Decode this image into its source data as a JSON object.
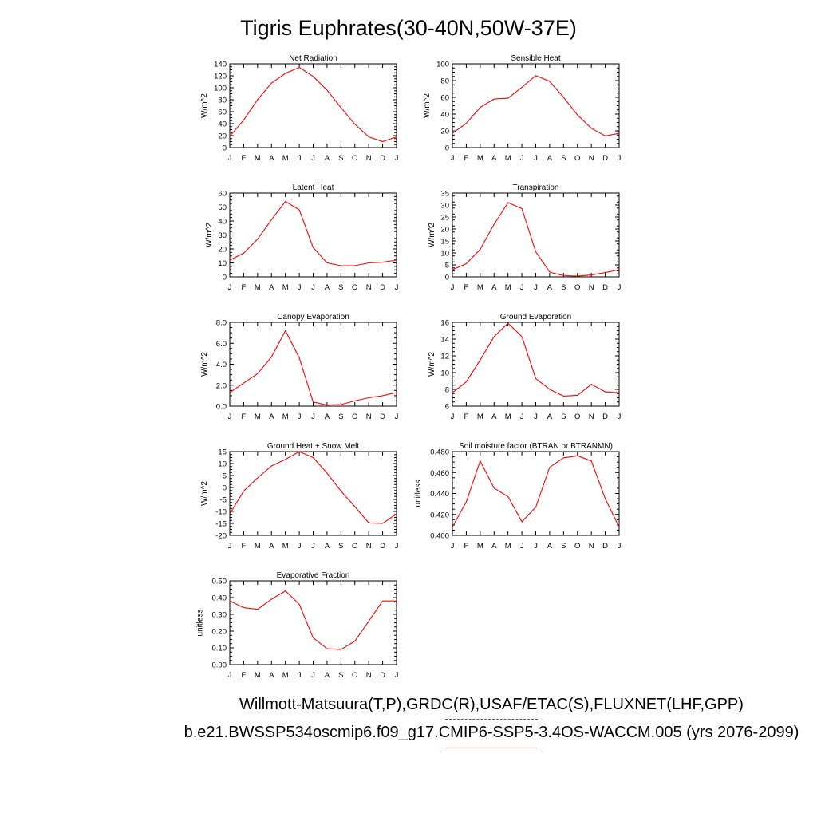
{
  "title": "Tigris Euphrates(30-40N,50W-37E)",
  "footer": {
    "line1": "Willmott-Matsuura(T,P),GRDC(R),USAF/ETAC(S),FLUXNET(LHF,GPP)",
    "line2": "b.e21.BWSSP534oscmip6.f09_g17.CMIP6-SSP5-3.4OS-WACCM.005 (yrs 2076-2099)"
  },
  "colors": {
    "series": "#ff0000",
    "axis": "#000000",
    "legend_obs": "#4b4bf0",
    "legend_model": "#ff6b6b"
  },
  "chart_data": [
    {
      "type": "line",
      "title": "Net Radiation",
      "ylabel": "W/m^2",
      "x": [
        "J",
        "F",
        "M",
        "A",
        "M",
        "J",
        "J",
        "A",
        "S",
        "O",
        "N",
        "D",
        "J"
      ],
      "ylim": [
        0,
        140
      ],
      "yticks": [
        0,
        20,
        40,
        60,
        80,
        100,
        120,
        140
      ],
      "ytick_labels": [
        "0",
        "20",
        "40",
        "60",
        "80",
        "100",
        "120",
        "140"
      ],
      "values": [
        19,
        46,
        80,
        108,
        124,
        134,
        119,
        96,
        67,
        39,
        18,
        10,
        18
      ]
    },
    {
      "type": "line",
      "title": "Sensible Heat",
      "ylabel": "W/m^2",
      "x": [
        "J",
        "F",
        "M",
        "A",
        "M",
        "J",
        "J",
        "A",
        "S",
        "O",
        "N",
        "D",
        "J"
      ],
      "ylim": [
        0,
        100
      ],
      "yticks": [
        0,
        20,
        40,
        60,
        80,
        100
      ],
      "ytick_labels": [
        "0",
        "20",
        "40",
        "60",
        "80",
        "100"
      ],
      "values": [
        17,
        29,
        48,
        58,
        59,
        72,
        86,
        79,
        60,
        39,
        23,
        14,
        17
      ]
    },
    {
      "type": "line",
      "title": "Latent Heat",
      "ylabel": "W/m^2",
      "x": [
        "J",
        "F",
        "M",
        "A",
        "M",
        "J",
        "J",
        "A",
        "S",
        "O",
        "N",
        "D",
        "J"
      ],
      "ylim": [
        0,
        60
      ],
      "yticks": [
        0,
        10,
        20,
        30,
        40,
        50,
        60
      ],
      "ytick_labels": [
        "0",
        "10",
        "20",
        "30",
        "40",
        "50",
        "60"
      ],
      "values": [
        12,
        17,
        27,
        41,
        54,
        48,
        21,
        10,
        8,
        8,
        10,
        10.5,
        12
      ]
    },
    {
      "type": "line",
      "title": "Transpiration",
      "ylabel": "W/m^2",
      "x": [
        "J",
        "F",
        "M",
        "A",
        "M",
        "J",
        "J",
        "A",
        "S",
        "O",
        "N",
        "D",
        "J"
      ],
      "ylim": [
        0,
        35
      ],
      "yticks": [
        0,
        5,
        10,
        15,
        20,
        25,
        30,
        35
      ],
      "ytick_labels": [
        "0",
        "5",
        "10",
        "15",
        "20",
        "25",
        "30",
        "35"
      ],
      "values": [
        3,
        5.5,
        11.5,
        22,
        31,
        28.5,
        10.5,
        2,
        0.5,
        0.3,
        0.8,
        1.8,
        3
      ]
    },
    {
      "type": "line",
      "title": "Canopy Evaporation",
      "ylabel": "W/m^2",
      "x": [
        "J",
        "F",
        "M",
        "A",
        "M",
        "J",
        "J",
        "A",
        "S",
        "O",
        "N",
        "D",
        "J"
      ],
      "ylim": [
        0,
        8
      ],
      "yticks": [
        0,
        2,
        4,
        6,
        8
      ],
      "ytick_labels": [
        "0.0",
        "2.0",
        "4.0",
        "6.0",
        "8.0"
      ],
      "values": [
        1.3,
        2.2,
        3.1,
        4.7,
        7.2,
        4.6,
        0.4,
        0.1,
        0.15,
        0.5,
        0.8,
        1.0,
        1.3
      ]
    },
    {
      "type": "line",
      "title": "Ground Evaporation",
      "ylabel": "W/m^2",
      "x": [
        "J",
        "F",
        "M",
        "A",
        "M",
        "J",
        "J",
        "A",
        "S",
        "O",
        "N",
        "D",
        "J"
      ],
      "ylim": [
        6,
        16
      ],
      "yticks": [
        6,
        8,
        10,
        12,
        14,
        16
      ],
      "ytick_labels": [
        "6",
        "8",
        "10",
        "12",
        "14",
        "16"
      ],
      "values": [
        7.6,
        8.9,
        11.5,
        14.3,
        15.9,
        14.3,
        9.3,
        8.0,
        7.2,
        7.3,
        8.6,
        7.7,
        7.6
      ]
    },
    {
      "type": "line",
      "title": "Ground Heat + Snow Melt",
      "ylabel": "W/m^2",
      "x": [
        "J",
        "F",
        "M",
        "A",
        "M",
        "J",
        "J",
        "A",
        "S",
        "O",
        "N",
        "D",
        "J"
      ],
      "ylim": [
        -20,
        15
      ],
      "yticks": [
        -20,
        -15,
        -10,
        -5,
        0,
        5,
        10,
        15
      ],
      "ytick_labels": [
        "-20",
        "-15",
        "-10",
        "-5",
        "0",
        "5",
        "10",
        "15"
      ],
      "values": [
        -11,
        -1.5,
        4,
        9,
        11.7,
        15,
        12.5,
        6,
        -1.5,
        -8,
        -14.8,
        -15,
        -11
      ]
    },
    {
      "type": "line",
      "title": "Soil moisture factor (BTRAN or BTRANMN)",
      "ylabel": "unitless",
      "x": [
        "J",
        "F",
        "M",
        "A",
        "M",
        "J",
        "J",
        "A",
        "S",
        "O",
        "N",
        "D",
        "J"
      ],
      "ylim": [
        0.4,
        0.48
      ],
      "yticks": [
        0.4,
        0.42,
        0.44,
        0.46,
        0.48
      ],
      "ytick_labels": [
        "0.400",
        "0.420",
        "0.440",
        "0.460",
        "0.480"
      ],
      "values": [
        0.408,
        0.432,
        0.471,
        0.445,
        0.437,
        0.413,
        0.427,
        0.465,
        0.474,
        0.476,
        0.471,
        0.435,
        0.408
      ]
    },
    {
      "type": "line",
      "title": "Evaporative Fraction",
      "ylabel": "unitless",
      "x": [
        "J",
        "F",
        "M",
        "A",
        "M",
        "J",
        "J",
        "A",
        "S",
        "O",
        "N",
        "D",
        "J"
      ],
      "ylim": [
        0,
        0.5
      ],
      "yticks": [
        0,
        0.1,
        0.2,
        0.3,
        0.4,
        0.5
      ],
      "ytick_labels": [
        "0.00",
        "0.10",
        "0.20",
        "0.30",
        "0.40",
        "0.50"
      ],
      "values": [
        0.38,
        0.34,
        0.33,
        0.39,
        0.44,
        0.36,
        0.16,
        0.095,
        0.09,
        0.14,
        0.26,
        0.38,
        0.38
      ]
    }
  ]
}
